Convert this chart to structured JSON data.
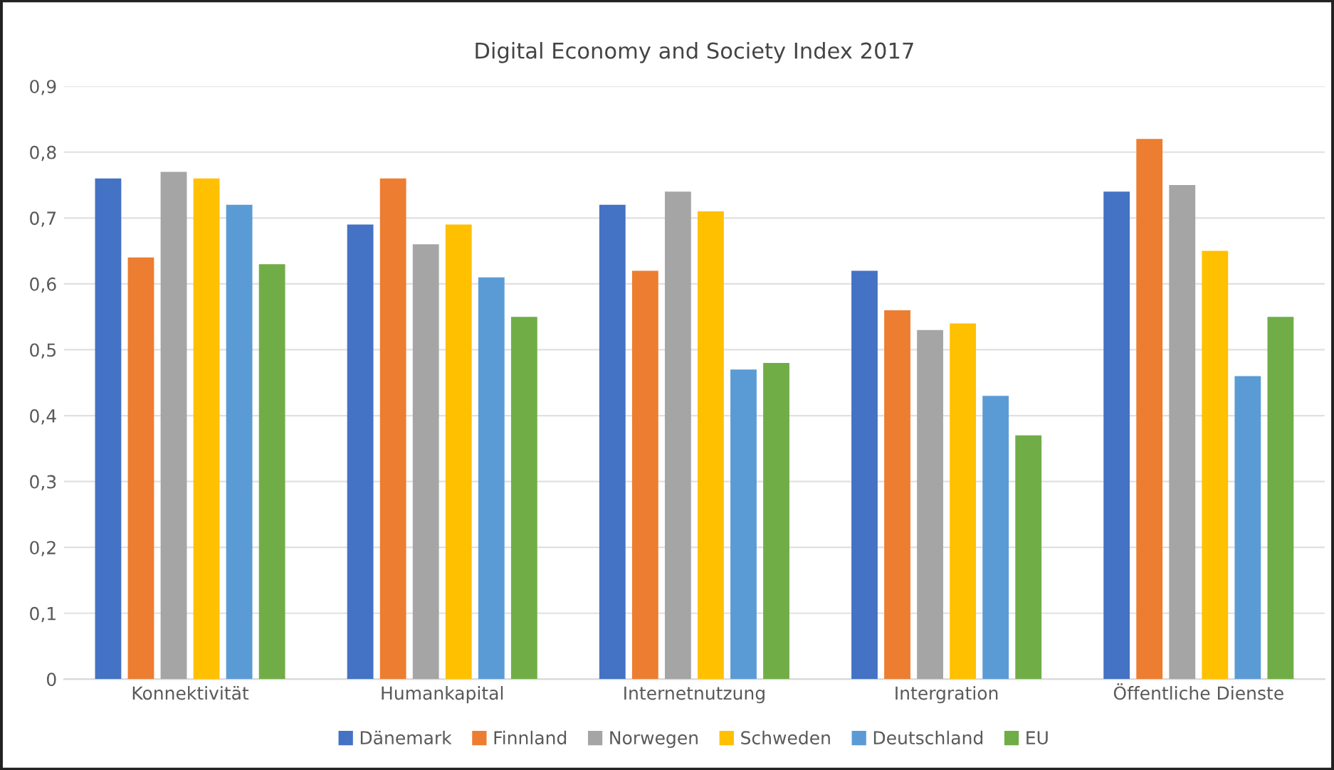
{
  "chart_data": {
    "type": "bar",
    "title": "Digital Economy and Society Index 2017",
    "categories": [
      "Konnektivität",
      "Humankapital",
      "Internetnutzung",
      "Intergration",
      "Öffentliche Dienste"
    ],
    "series": [
      {
        "name": "Dänemark",
        "color": "#4472c4",
        "values": [
          0.76,
          0.69,
          0.72,
          0.62,
          0.74
        ]
      },
      {
        "name": "Finnland",
        "color": "#ed7d31",
        "values": [
          0.64,
          0.76,
          0.62,
          0.56,
          0.82
        ]
      },
      {
        "name": "Norwegen",
        "color": "#a5a5a5",
        "values": [
          0.77,
          0.66,
          0.74,
          0.53,
          0.75
        ]
      },
      {
        "name": "Schweden",
        "color": "#ffc000",
        "values": [
          0.76,
          0.69,
          0.71,
          0.54,
          0.65
        ]
      },
      {
        "name": "Deutschland",
        "color": "#5b9bd5",
        "values": [
          0.72,
          0.61,
          0.47,
          0.43,
          0.46
        ]
      },
      {
        "name": "EU",
        "color": "#70ad47",
        "values": [
          0.63,
          0.55,
          0.48,
          0.37,
          0.55
        ]
      }
    ],
    "ylim": [
      0,
      0.9
    ],
    "yticks": [
      0,
      {
        "value": 0.1,
        "label": "0,1"
      },
      {
        "value": 0.2,
        "label": "0,2"
      },
      {
        "value": 0.3,
        "label": "0,3"
      },
      {
        "value": 0.4,
        "label": "0,4"
      },
      {
        "value": 0.5,
        "label": "0,5"
      },
      {
        "value": 0.6,
        "label": "0,6"
      },
      {
        "value": 0.7,
        "label": "0,7"
      },
      {
        "value": 0.8,
        "label": "0,8"
      },
      {
        "value": 0.9,
        "label": "0,9"
      }
    ],
    "grid": "y",
    "legend": "bottom"
  }
}
